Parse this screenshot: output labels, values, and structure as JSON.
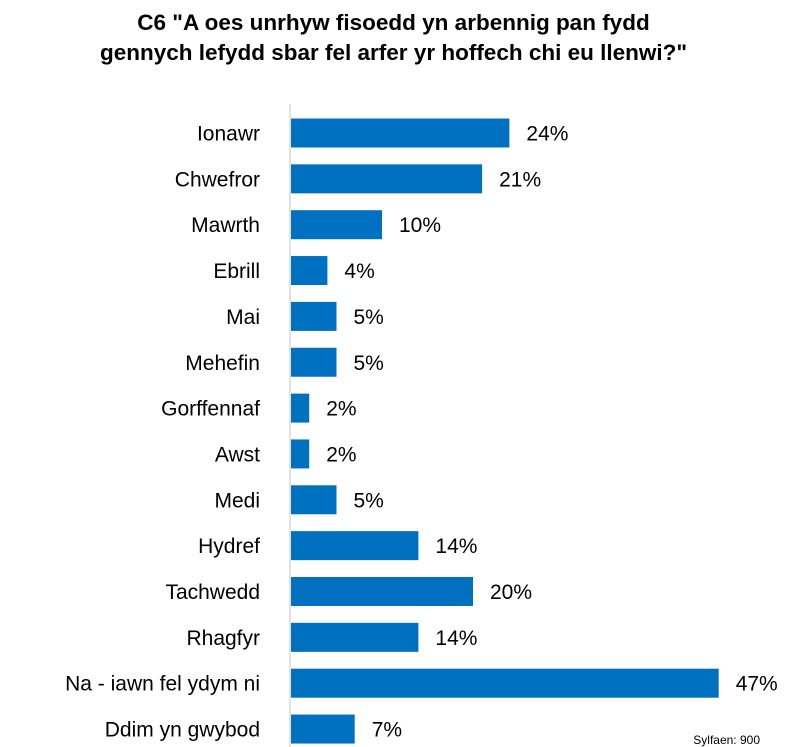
{
  "chart_data": {
    "type": "bar",
    "orientation": "horizontal",
    "title_lines": [
      "C6 \"A oes unrhyw fisoedd yn arbennig pan fydd",
      "gennych lefydd sbar fel arfer yr hoffech chi eu llenwi?\""
    ],
    "categories": [
      "Ionawr",
      "Chwefror",
      "Mawrth",
      "Ebrill",
      "Mai",
      "Mehefin",
      "Gorffennaf",
      "Awst",
      "Medi",
      "Hydref",
      "Tachwedd",
      "Rhagfyr",
      "Na - iawn fel ydym ni",
      "Ddim yn gwybod"
    ],
    "values": [
      24,
      21,
      10,
      4,
      5,
      5,
      2,
      2,
      5,
      14,
      20,
      14,
      47,
      7
    ],
    "value_suffix": "%",
    "xlim": [
      0,
      47
    ],
    "grid": false,
    "legend": "none",
    "bar_color": "#0070C0",
    "axis_color": "#D9D9D9",
    "base_note": "Sylfaen: 900"
  }
}
